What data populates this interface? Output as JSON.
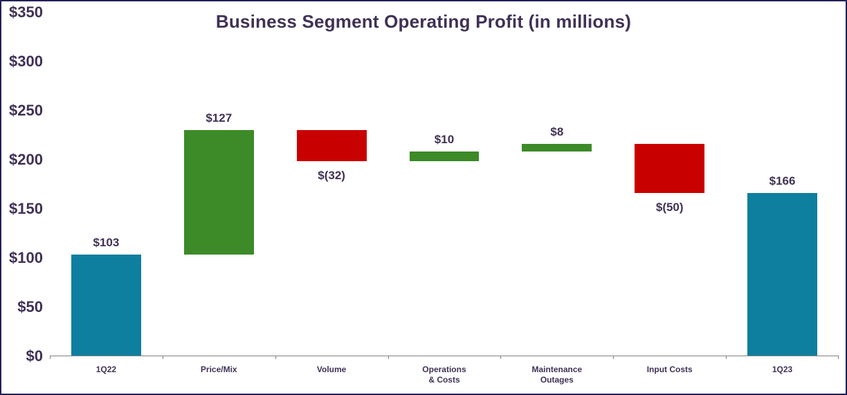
{
  "chart_data": {
    "type": "bar",
    "subtype": "waterfall",
    "title": "Business Segment Operating Profit (in millions)",
    "ylabel": "",
    "xlabel": "",
    "ylim": [
      0,
      350
    ],
    "ytick_values": [
      0,
      50,
      100,
      150,
      200,
      250,
      300,
      350
    ],
    "ytick_labels": [
      "$0",
      "$50",
      "$100",
      "$150",
      "$200",
      "$250",
      "$300",
      "$350"
    ],
    "grid": false,
    "legend": "none",
    "colors": {
      "total": "#0E7F9E",
      "increase": "#3C8A28",
      "decrease": "#C90000",
      "text": "#403155",
      "axis": "#808080",
      "border": "#23205A"
    },
    "bars": [
      {
        "category_lines": [
          "1Q22"
        ],
        "label": "$103",
        "value": 103,
        "start": 0,
        "end": 103,
        "type": "total"
      },
      {
        "category_lines": [
          "Price/Mix"
        ],
        "label": "$127",
        "value": 127,
        "start": 103,
        "end": 230,
        "type": "increase"
      },
      {
        "category_lines": [
          "Volume"
        ],
        "label": "$(32)",
        "value": -32,
        "start": 230,
        "end": 198,
        "type": "decrease"
      },
      {
        "category_lines": [
          "Operations",
          "& Costs"
        ],
        "label": "$10",
        "value": 10,
        "start": 198,
        "end": 208,
        "type": "increase"
      },
      {
        "category_lines": [
          "Maintenance",
          "Outages"
        ],
        "label": "$8",
        "value": 8,
        "start": 208,
        "end": 216,
        "type": "increase"
      },
      {
        "category_lines": [
          "Input Costs"
        ],
        "label": "$(50)",
        "value": -50,
        "start": 216,
        "end": 166,
        "type": "decrease"
      },
      {
        "category_lines": [
          "1Q23"
        ],
        "label": "$166",
        "value": 166,
        "start": 0,
        "end": 166,
        "type": "total"
      }
    ]
  }
}
